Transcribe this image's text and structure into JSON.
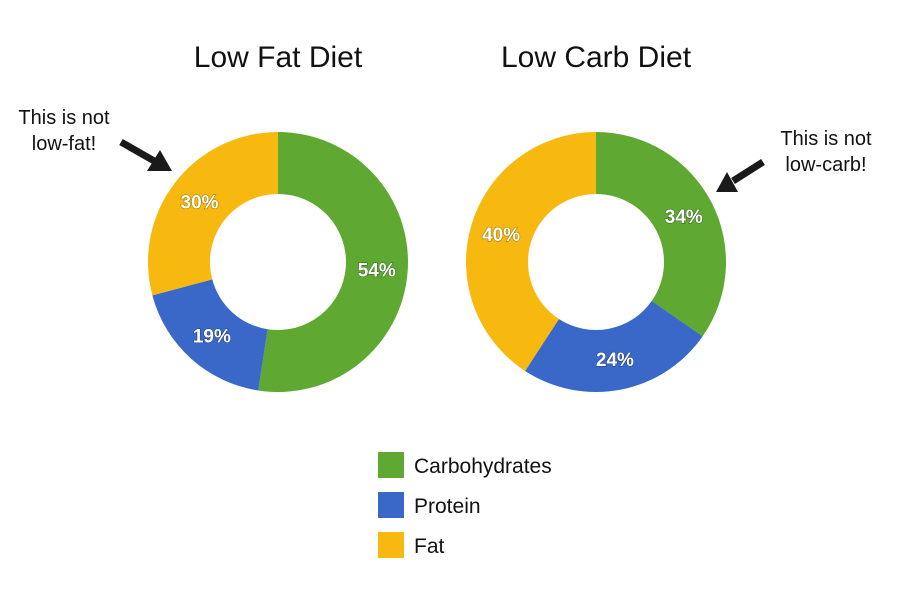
{
  "colors": {
    "carbohydrates": "#5fa832",
    "protein": "#3a68c9",
    "fat": "#f7b90f"
  },
  "chart_data": [
    {
      "type": "pie",
      "variant": "donut",
      "title": "Low Fat Diet",
      "annotation": [
        "This is not",
        "low-fat!"
      ],
      "annotation_target": "Fat",
      "slices": [
        {
          "label": "Carbohydrates",
          "value": 54,
          "text": "54%"
        },
        {
          "label": "Protein",
          "value": 19,
          "text": "19%"
        },
        {
          "label": "Fat",
          "value": 30,
          "text": "30%"
        }
      ]
    },
    {
      "type": "pie",
      "variant": "donut",
      "title": "Low Carb Diet",
      "annotation": [
        "This is not",
        "low-carb!"
      ],
      "annotation_target": "Carbohydrates",
      "slices": [
        {
          "label": "Carbohydrates",
          "value": 34,
          "text": "34%"
        },
        {
          "label": "Protein",
          "value": 24,
          "text": "24%"
        },
        {
          "label": "Fat",
          "value": 40,
          "text": "40%"
        }
      ]
    }
  ],
  "legend": [
    {
      "key": "carbohydrates",
      "label": "Carbohydrates"
    },
    {
      "key": "protein",
      "label": "Protein"
    },
    {
      "key": "fat",
      "label": "Fat"
    }
  ]
}
